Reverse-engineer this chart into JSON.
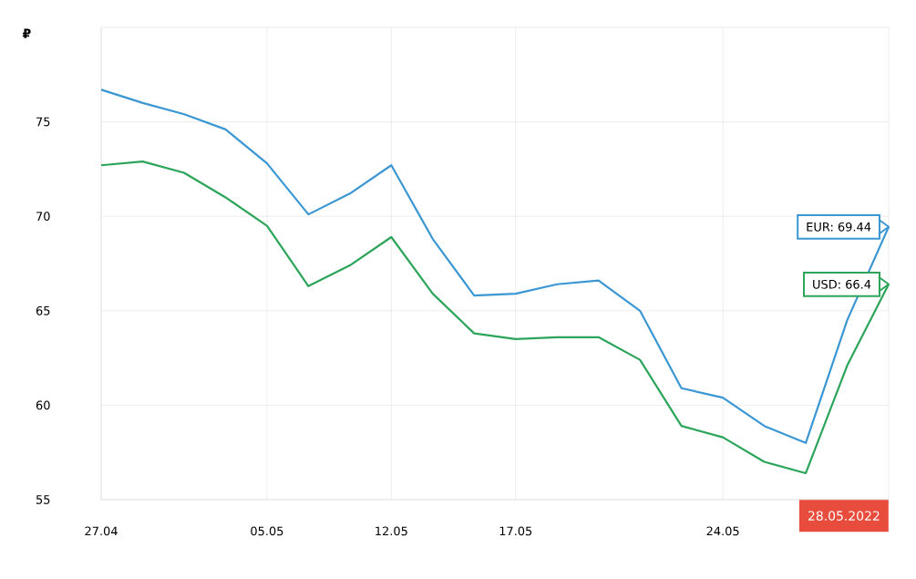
{
  "chart_data": {
    "type": "line",
    "ylabel": "₽",
    "categories": [
      "27.04",
      null,
      null,
      null,
      "05.05",
      null,
      null,
      "12.05",
      null,
      null,
      "17.05",
      null,
      null,
      null,
      null,
      "24.05",
      null,
      null,
      null,
      null
    ],
    "ylim": [
      55,
      80
    ],
    "yticks": [
      55,
      60,
      65,
      70,
      75
    ],
    "grid": true,
    "series": [
      {
        "color": "#3b97d3",
        "values": [
          76.7,
          76.0,
          75.4,
          74.6,
          72.8,
          70.1,
          71.2,
          72.7,
          68.8,
          65.8,
          65.9,
          66.4,
          66.6,
          65.0,
          60.9,
          60.4,
          58.9,
          58.0,
          64.5,
          69.44
        ],
        "value_labels": [
          null,
          null,
          null,
          null,
          null,
          null,
          null,
          null,
          null,
          null,
          null,
          null,
          null,
          null,
          null,
          null,
          null,
          null,
          null,
          "EUR: 69.44"
        ]
      },
      {
        "color": "#2ca55a",
        "values": [
          72.7,
          72.9,
          72.3,
          71.0,
          69.5,
          66.3,
          67.4,
          68.9,
          65.9,
          63.8,
          63.5,
          63.6,
          63.6,
          62.4,
          58.9,
          58.3,
          57.0,
          56.4,
          62.1,
          66.4
        ],
        "value_labels": [
          null,
          null,
          null,
          null,
          null,
          null,
          null,
          null,
          null,
          null,
          null,
          null,
          null,
          null,
          null,
          null,
          null,
          null,
          null,
          "USD: 66.4"
        ]
      }
    ],
    "annotations": [
      "28.05.2022"
    ]
  }
}
